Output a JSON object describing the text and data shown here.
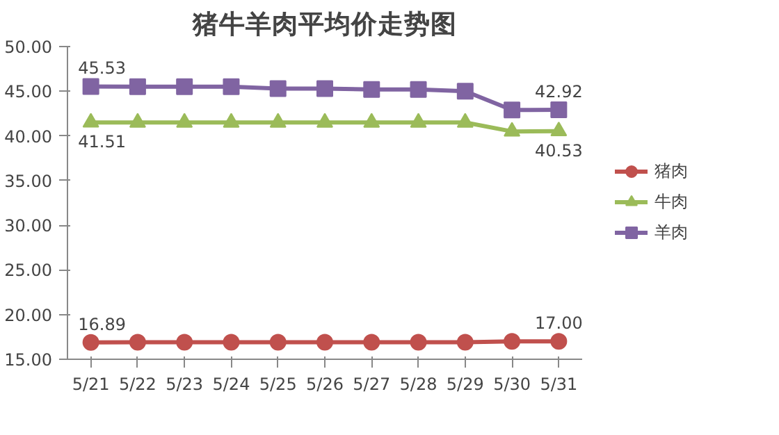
{
  "chart_data": {
    "type": "line",
    "title": "猪牛羊肉平均价走势图",
    "categories": [
      "5/21",
      "5/22",
      "5/23",
      "5/24",
      "5/25",
      "5/26",
      "5/27",
      "5/28",
      "5/29",
      "5/30",
      "5/31"
    ],
    "series": [
      {
        "name": "猪肉",
        "color": "#c0504d",
        "marker": "circle",
        "values": [
          16.89,
          16.9,
          16.9,
          16.9,
          16.9,
          16.9,
          16.9,
          16.9,
          16.9,
          17.0,
          17.0
        ],
        "value_labels": [
          "16.89",
          null,
          null,
          null,
          null,
          null,
          null,
          null,
          null,
          null,
          "17.00"
        ]
      },
      {
        "name": "牛肉",
        "color": "#9bbb59",
        "marker": "triangle",
        "values": [
          41.51,
          41.5,
          41.5,
          41.5,
          41.5,
          41.5,
          41.5,
          41.5,
          41.5,
          40.5,
          40.53
        ],
        "value_labels": [
          "41.51",
          null,
          null,
          null,
          null,
          null,
          null,
          null,
          null,
          null,
          "40.53"
        ]
      },
      {
        "name": "羊肉",
        "color": "#8064a2",
        "marker": "square",
        "values": [
          45.53,
          45.5,
          45.5,
          45.5,
          45.3,
          45.3,
          45.2,
          45.2,
          45.0,
          42.9,
          42.92
        ],
        "value_labels": [
          "45.53",
          null,
          null,
          null,
          null,
          null,
          null,
          null,
          null,
          null,
          "42.92"
        ]
      }
    ],
    "ylim": [
      15,
      50
    ],
    "yticks": [
      {
        "value": 15,
        "label": "15.00"
      },
      {
        "value": 20,
        "label": "20.00"
      },
      {
        "value": 25,
        "label": "25.00"
      },
      {
        "value": 30,
        "label": "30.00"
      },
      {
        "value": 35,
        "label": "35.00"
      },
      {
        "value": 40,
        "label": "40.00"
      },
      {
        "value": 45,
        "label": "45.00"
      },
      {
        "value": 50,
        "label": "50.00"
      }
    ],
    "legend": "right"
  }
}
